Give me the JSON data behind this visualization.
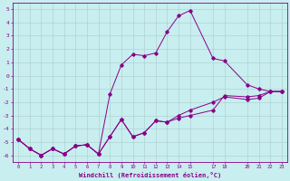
{
  "xlabel": "Windchill (Refroidissement éolien,°C)",
  "bg_color": "#c8eef0",
  "line_color": "#880088",
  "grid_color": "#aacccc",
  "xlim": [
    -0.5,
    23.5
  ],
  "ylim": [
    -6.5,
    5.5
  ],
  "yticks": [
    -6,
    -5,
    -4,
    -3,
    -2,
    -1,
    0,
    1,
    2,
    3,
    4,
    5
  ],
  "xticks": [
    0,
    1,
    2,
    3,
    4,
    5,
    6,
    7,
    8,
    9,
    10,
    11,
    12,
    13,
    14,
    15,
    17,
    18,
    20,
    21,
    22,
    23
  ],
  "line1_x": [
    0,
    1,
    2,
    3,
    4,
    5,
    6,
    7,
    8,
    9,
    10,
    11,
    12,
    13,
    14,
    15,
    17,
    18,
    20,
    21,
    22,
    23
  ],
  "line1_y": [
    -4.8,
    -5.5,
    -6.0,
    -5.5,
    -5.9,
    -5.3,
    -5.2,
    -5.9,
    -4.6,
    -3.3,
    -4.6,
    -4.3,
    -3.4,
    -3.5,
    -3.2,
    -3.0,
    -2.6,
    -1.5,
    -1.6,
    -1.5,
    -1.2,
    -1.2
  ],
  "line2_x": [
    0,
    1,
    2,
    3,
    4,
    5,
    6,
    7,
    8,
    9,
    10,
    11,
    12,
    13,
    14,
    15,
    17,
    18,
    20,
    21,
    22,
    23
  ],
  "line2_y": [
    -4.8,
    -5.5,
    -6.0,
    -5.5,
    -5.9,
    -5.3,
    -5.2,
    -5.9,
    -1.4,
    0.8,
    1.6,
    1.5,
    1.7,
    3.3,
    4.5,
    4.9,
    1.3,
    1.1,
    -0.7,
    -1.0,
    -1.2,
    -1.2
  ],
  "line3_x": [
    0,
    1,
    2,
    3,
    4,
    5,
    6,
    7,
    8,
    9,
    10,
    11,
    12,
    13,
    14,
    15,
    17,
    18,
    20,
    21,
    22,
    23
  ],
  "line3_y": [
    -4.8,
    -5.5,
    -6.0,
    -5.5,
    -5.9,
    -5.3,
    -5.2,
    -5.9,
    -4.6,
    -3.3,
    -4.6,
    -4.3,
    -3.4,
    -3.5,
    -3.0,
    -2.6,
    -2.0,
    -1.6,
    -1.8,
    -1.7,
    -1.2,
    -1.2
  ]
}
